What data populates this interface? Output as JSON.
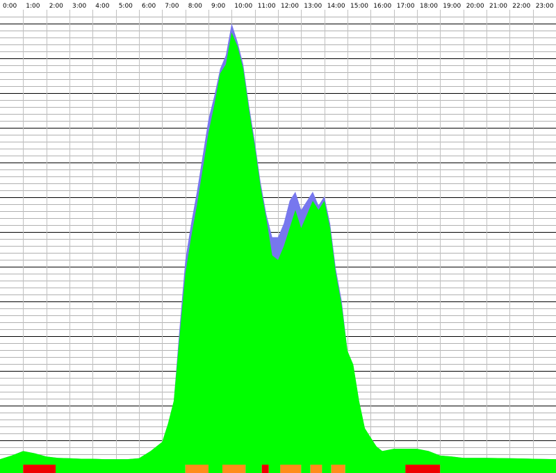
{
  "chart_data": {
    "type": "area",
    "title": "",
    "xlabel": "",
    "ylabel": "",
    "x_unit": "hour of day",
    "xlim": [
      0,
      24
    ],
    "ylim": [
      0,
      1
    ],
    "y_scale": "relative (no printed values)",
    "grid": true,
    "legend": "none",
    "hour_labels": [
      "0:00",
      "1:00",
      "2:00",
      "3:00",
      "4:00",
      "5:00",
      "6:00",
      "7:00",
      "8:00",
      "9:00",
      "10:00",
      "11:00",
      "12:00",
      "13:00",
      "14:00",
      "15:00",
      "16:00",
      "17:00",
      "18:00",
      "19:00",
      "20:00",
      "21:00",
      "22:00",
      "23:00"
    ],
    "colors": {
      "primary": "#00ff00",
      "secondary": "#7777ee",
      "status_ok": "#00ff00",
      "status_warn": "#ff8c1a",
      "status_bad": "#ee0000",
      "grid_major": "#000000",
      "grid_minor": "#b0b0b0",
      "grid_vertical": "#c0c0c0"
    },
    "series": [
      {
        "role": "total",
        "color": "#7777ee",
        "x": [
          0,
          0.5,
          1,
          1.5,
          2,
          2.5,
          3,
          3.5,
          4,
          4.5,
          5,
          5.5,
          6,
          6.5,
          7,
          7.25,
          7.5,
          7.75,
          8,
          8.25,
          8.5,
          8.75,
          9,
          9.25,
          9.5,
          9.75,
          10,
          10.25,
          10.5,
          10.75,
          11,
          11.25,
          11.5,
          11.75,
          12,
          12.25,
          12.5,
          12.75,
          13,
          13.25,
          13.5,
          13.75,
          14,
          14.25,
          14.5,
          14.75,
          15,
          15.25,
          15.5,
          15.75,
          16,
          16.25,
          16.5,
          17,
          17.5,
          18,
          18.5,
          19,
          19.5,
          20,
          21,
          22,
          23,
          24
        ],
        "values": [
          0.012,
          0.02,
          0.03,
          0.025,
          0.018,
          0.015,
          0.014,
          0.013,
          0.013,
          0.012,
          0.012,
          0.012,
          0.014,
          0.03,
          0.05,
          0.09,
          0.14,
          0.3,
          0.45,
          0.53,
          0.6,
          0.68,
          0.76,
          0.81,
          0.87,
          0.9,
          0.97,
          0.93,
          0.88,
          0.79,
          0.71,
          0.62,
          0.55,
          0.5,
          0.5,
          0.53,
          0.58,
          0.6,
          0.56,
          0.58,
          0.6,
          0.57,
          0.59,
          0.53,
          0.43,
          0.36,
          0.25,
          0.22,
          0.14,
          0.08,
          0.06,
          0.04,
          0.03,
          0.035,
          0.035,
          0.035,
          0.03,
          0.02,
          0.018,
          0.015,
          0.015,
          0.014,
          0.013,
          0.012
        ]
      },
      {
        "role": "ok",
        "color": "#00ff00",
        "x": [
          0,
          0.5,
          1,
          1.5,
          2,
          2.5,
          3,
          3.5,
          4,
          4.5,
          5,
          5.5,
          6,
          6.5,
          7,
          7.25,
          7.5,
          7.75,
          8,
          8.25,
          8.5,
          8.75,
          9,
          9.25,
          9.5,
          9.75,
          10,
          10.25,
          10.5,
          10.75,
          11,
          11.25,
          11.5,
          11.75,
          12,
          12.25,
          12.5,
          12.75,
          13,
          13.25,
          13.5,
          13.75,
          14,
          14.25,
          14.5,
          14.75,
          15,
          15.25,
          15.5,
          15.75,
          16,
          16.25,
          16.5,
          17,
          17.5,
          18,
          18.5,
          19,
          19.5,
          20,
          21,
          22,
          23,
          24
        ],
        "values": [
          0.012,
          0.02,
          0.03,
          0.025,
          0.018,
          0.015,
          0.014,
          0.013,
          0.013,
          0.012,
          0.012,
          0.012,
          0.014,
          0.03,
          0.05,
          0.09,
          0.14,
          0.28,
          0.42,
          0.5,
          0.57,
          0.65,
          0.73,
          0.79,
          0.86,
          0.88,
          0.95,
          0.92,
          0.87,
          0.78,
          0.7,
          0.61,
          0.54,
          0.46,
          0.45,
          0.48,
          0.52,
          0.56,
          0.52,
          0.55,
          0.58,
          0.56,
          0.58,
          0.52,
          0.42,
          0.35,
          0.25,
          0.22,
          0.14,
          0.08,
          0.06,
          0.04,
          0.03,
          0.035,
          0.035,
          0.035,
          0.03,
          0.02,
          0.018,
          0.015,
          0.015,
          0.014,
          0.013,
          0.012
        ]
      }
    ],
    "status_bar": [
      {
        "from": 0,
        "to": 1,
        "status": "ok"
      },
      {
        "from": 1,
        "to": 2.4,
        "status": "bad"
      },
      {
        "from": 2.4,
        "to": 8,
        "status": "ok"
      },
      {
        "from": 8,
        "to": 9,
        "status": "warn"
      },
      {
        "from": 9,
        "to": 9.6,
        "status": "ok"
      },
      {
        "from": 9.6,
        "to": 10.6,
        "status": "warn"
      },
      {
        "from": 10.6,
        "to": 11.3,
        "status": "ok"
      },
      {
        "from": 11.3,
        "to": 11.6,
        "status": "bad"
      },
      {
        "from": 11.6,
        "to": 12.1,
        "status": "ok"
      },
      {
        "from": 12.1,
        "to": 13,
        "status": "warn"
      },
      {
        "from": 13,
        "to": 13.4,
        "status": "ok"
      },
      {
        "from": 13.4,
        "to": 13.9,
        "status": "warn"
      },
      {
        "from": 13.9,
        "to": 14.3,
        "status": "ok"
      },
      {
        "from": 14.3,
        "to": 14.9,
        "status": "warn"
      },
      {
        "from": 14.9,
        "to": 17.5,
        "status": "ok"
      },
      {
        "from": 17.5,
        "to": 19,
        "status": "bad"
      },
      {
        "from": 19,
        "to": 24,
        "status": "ok"
      }
    ]
  }
}
